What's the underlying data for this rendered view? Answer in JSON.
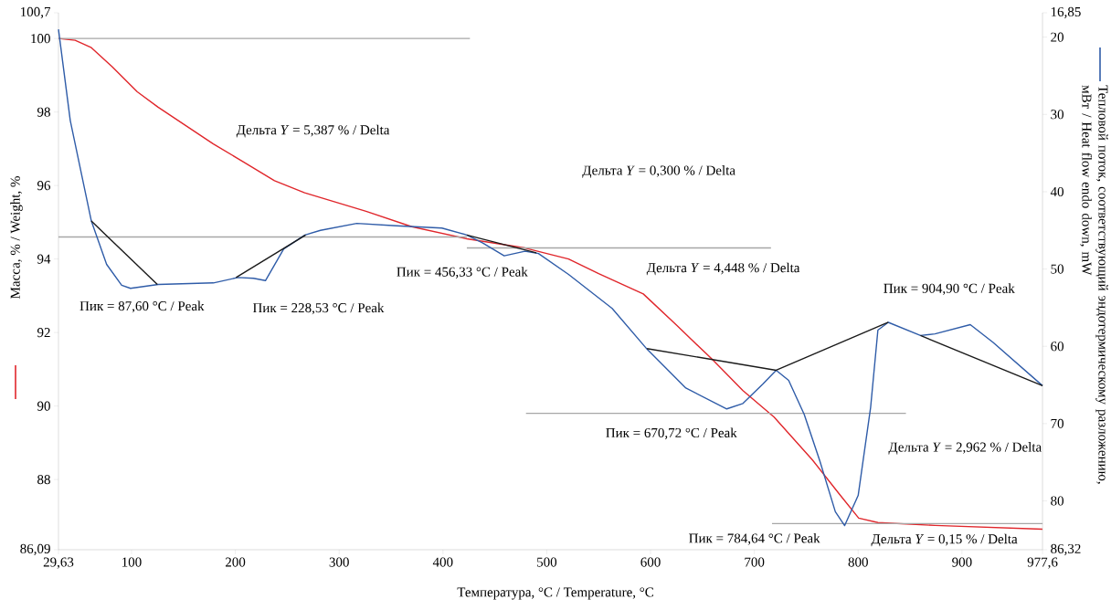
{
  "chart_data": {
    "type": "line",
    "xlabel": "Температура, °C / Temperature, °C",
    "ylabel": "Масса, % / Weight, %",
    "y2label": "Тепловой поток, соответствующий эндотермическому разложению, мВт / Heat flow endo down, mW",
    "xlim": [
      29.63,
      977.6
    ],
    "xticks": [
      {
        "value": 29.63,
        "label": "29,63"
      },
      100,
      200,
      300,
      400,
      500,
      600,
      700,
      800,
      900,
      {
        "value": 977.6,
        "label": "977,6"
      }
    ],
    "ylim": [
      86.09,
      100.7
    ],
    "yticks": [
      {
        "value": 86.09,
        "label": "86,09"
      },
      88,
      90,
      92,
      94,
      96,
      98,
      100,
      {
        "value": 100.7,
        "label": "100,7"
      }
    ],
    "y2lim": [
      86.32,
      16.85
    ],
    "y2ticks": [
      {
        "value": 16.85,
        "label": "16,85"
      },
      20,
      30,
      40,
      50,
      60,
      70,
      80,
      {
        "value": 86.32,
        "label": "86,32"
      }
    ],
    "series": [
      {
        "axis": "y",
        "color": "#e0262b",
        "x": [
          29.63,
          45.7,
          61.3,
          81.5,
          105.5,
          125.6,
          178.8,
          208.6,
          237.7,
          266.8,
          325.9,
          370,
          423,
          479,
          521,
          550,
          593,
          625,
          659,
          689,
          719,
          756,
          782,
          800.5,
          819,
          874,
          977.6
        ],
        "values": [
          100.0,
          99.95,
          99.75,
          99.23,
          98.55,
          98.13,
          97.13,
          96.63,
          96.13,
          95.8,
          95.3,
          94.88,
          94.55,
          94.3,
          94.0,
          93.6,
          93.05,
          92.2,
          91.28,
          90.42,
          89.7,
          88.53,
          87.6,
          86.95,
          86.83,
          86.75,
          86.65
        ]
      },
      {
        "axis": "y2",
        "color": "#2f5ca8",
        "x": [
          29.63,
          41,
          61.3,
          76,
          90.5,
          99,
          125.8,
          178.8,
          202.5,
          217.5,
          229,
          246.6,
          267,
          282,
          317,
          355,
          399,
          423,
          438,
          459,
          479,
          492,
          521,
          563,
          596.8,
          634,
          673.4,
          689,
          708,
          721,
          733,
          748,
          763,
          778,
          787,
          800,
          812,
          819,
          829,
          860,
          874,
          908,
          930,
          977.6
        ],
        "values": [
          19,
          30.8,
          43.8,
          49.4,
          52.1,
          52.5,
          52.0,
          51.8,
          51.1,
          51.2,
          51.5,
          47.4,
          45.6,
          45.0,
          44.1,
          44.4,
          44.7,
          45.6,
          46.6,
          48.3,
          47.7,
          48.0,
          50.7,
          55.1,
          60.4,
          65.4,
          68.1,
          67.4,
          64.9,
          63.1,
          64.4,
          68.8,
          74.8,
          81.4,
          83.2,
          79.3,
          67.9,
          57.9,
          56.9,
          58.6,
          58.4,
          57.2,
          59.5,
          65.1
        ]
      },
      {
        "axis": "y2",
        "color": "#1a1a1a",
        "x": [
          61.3,
          124.9
        ],
        "values": [
          43.8,
          52.0
        ]
      },
      {
        "axis": "y2",
        "color": "#1a1a1a",
        "x": [
          200.7,
          267.7
        ],
        "values": [
          51.1,
          45.6
        ]
      },
      {
        "axis": "y2",
        "color": "#1a1a1a",
        "x": [
          423,
          490
        ],
        "values": [
          45.6,
          47.9
        ]
      },
      {
        "axis": "y2",
        "color": "#1a1a1a",
        "x": [
          596.5,
          721,
          829
        ],
        "values": [
          60.3,
          63.1,
          56.9
        ]
      },
      {
        "axis": "y2",
        "color": "#1a1a1a",
        "x": [
          860,
          977.6
        ],
        "values": [
          58.6,
          65.1
        ]
      },
      {
        "axis": "y",
        "color": "#a6a6a6",
        "x": [
          29.63,
          426
        ],
        "values": [
          100.0,
          100.0
        ]
      },
      {
        "axis": "y",
        "color": "#a6a6a6",
        "x": [
          29.63,
          423
        ],
        "values": [
          94.6,
          94.6
        ]
      },
      {
        "axis": "y",
        "color": "#a6a6a6",
        "x": [
          423,
          716
        ],
        "values": [
          94.3,
          94.3
        ]
      },
      {
        "axis": "y",
        "color": "#a6a6a6",
        "x": [
          480,
          846
        ],
        "values": [
          89.8,
          89.8
        ]
      },
      {
        "axis": "y",
        "color": "#a6a6a6",
        "x": [
          717,
          977.6
        ],
        "values": [
          86.8,
          86.8
        ]
      }
    ],
    "annotations": [
      "Дельта *Y* = 5,387 % / Delta",
      "Дельта *Y* = 0,300 % / Delta",
      "Пик = 456,33 °C / Peak",
      "Дельта *Y* = 4,448 % / Delta",
      "Пик = 87,60 °C / Peak",
      "Пик = 228,53 °C / Peak",
      "Пик = 904,90 °C / Peak",
      "Пик = 670,72 °C / Peak",
      "Дельта *Y* = 2,962 % / Delta",
      "Пик = 784,64 °C / Peak",
      "Дельта *Y* = 0,15 % / Delta"
    ]
  }
}
